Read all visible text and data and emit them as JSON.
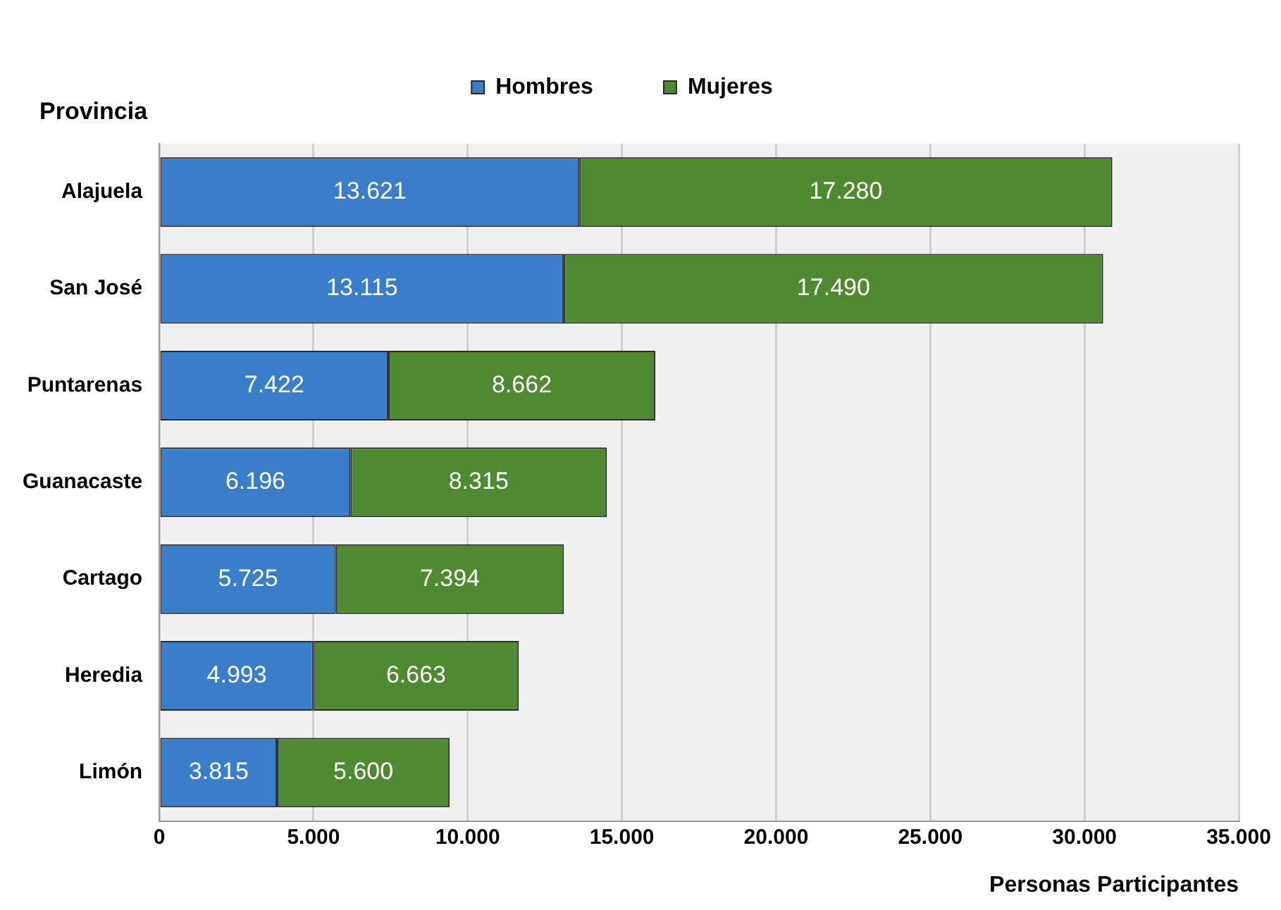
{
  "chart_data": {
    "type": "bar",
    "orientation": "horizontal",
    "stacked": true,
    "xlabel": "Personas Participantes",
    "ylabel": "Provincia",
    "categories": [
      "Alajuela",
      "San José",
      "Puntarenas",
      "Guanacaste",
      "Cartago",
      "Heredia",
      "Limón"
    ],
    "series": [
      {
        "name": "Hombres",
        "color": "#3a7dc9",
        "values": [
          13621,
          13115,
          7422,
          6196,
          5725,
          4993,
          3815
        ],
        "value_labels": [
          "13.621",
          "13.115",
          "7.422",
          "6.196",
          "5.725",
          "4.993",
          "3.815"
        ]
      },
      {
        "name": "Mujeres",
        "color": "#4f8a30",
        "values": [
          17280,
          17490,
          8662,
          8315,
          7394,
          6663,
          5600
        ],
        "value_labels": [
          "17.280",
          "17.490",
          "8.662",
          "8.315",
          "7.394",
          "6.663",
          "5.600"
        ]
      }
    ],
    "xlim": [
      0,
      35000
    ],
    "xticks": [
      {
        "value": 0,
        "label": "0"
      },
      {
        "value": 5000,
        "label": "5.000"
      },
      {
        "value": 10000,
        "label": "10.000"
      },
      {
        "value": 15000,
        "label": "15.000"
      },
      {
        "value": 20000,
        "label": "20.000"
      },
      {
        "value": 25000,
        "label": "25.000"
      },
      {
        "value": 30000,
        "label": "30.000"
      },
      {
        "value": 35000,
        "label": "35.000"
      }
    ],
    "grid": "x",
    "legend": "top"
  }
}
